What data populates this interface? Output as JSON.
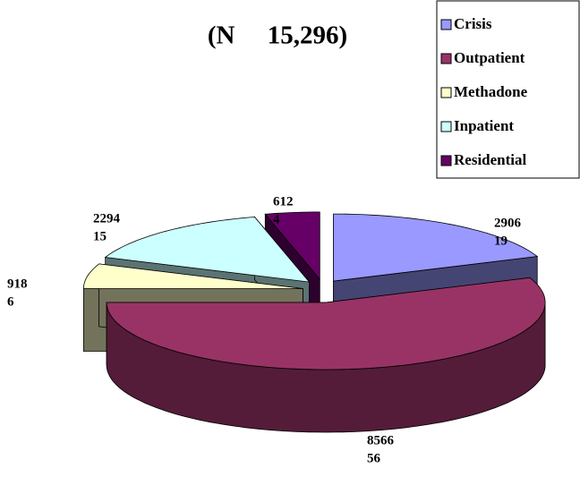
{
  "chart_data": {
    "type": "pie3d",
    "title": "(N     15,296)",
    "categories": [
      "Crisis",
      "Outpatient",
      "Methadone",
      "Inpatient",
      "Residential"
    ],
    "values": [
      2906,
      8566,
      918,
      2294,
      612
    ],
    "percents": [
      19,
      56,
      6,
      15,
      4
    ],
    "colors": [
      "#9999ff",
      "#993366",
      "#ffffcc",
      "#ccffff",
      "#660066"
    ],
    "legend": "top-right"
  }
}
